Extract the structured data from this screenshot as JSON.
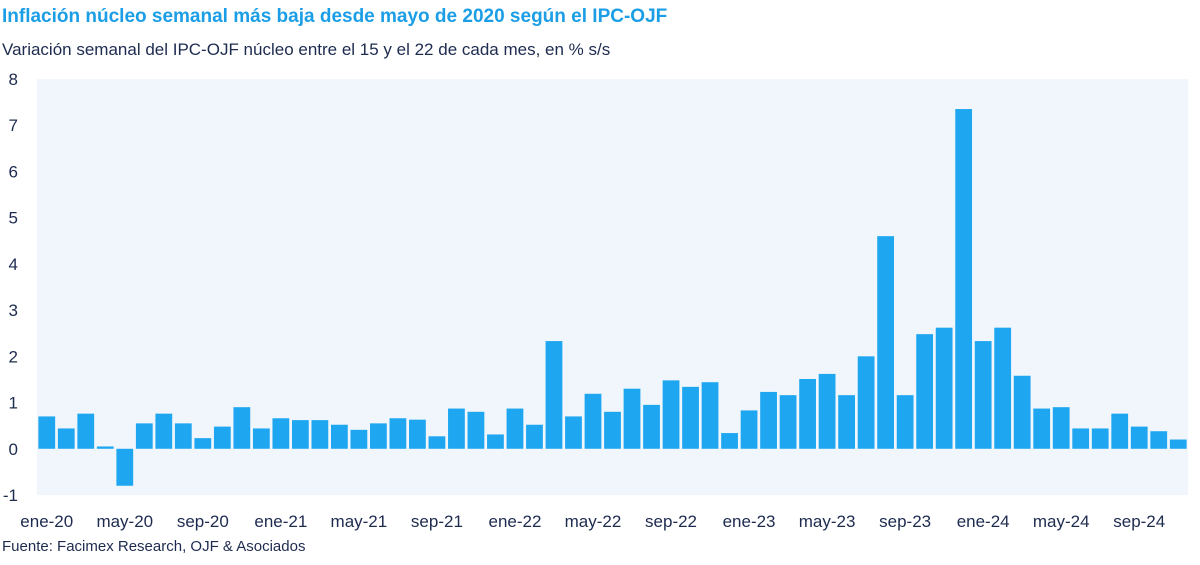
{
  "header": {
    "title": "Inflación núcleo semanal más baja desde mayo de 2020 según el IPC-OJF",
    "subtitle": "Variación semanal del IPC-OJF núcleo entre el 15 y el 22 de cada mes, en % s/s"
  },
  "footer": {
    "source": "Fuente: Facimex Research, OJF & Asociados"
  },
  "colors": {
    "bar": "#1ea7f0",
    "plot_background": "#f1f6fc",
    "title": "#1b9ee6",
    "text": "#1d2b4f"
  },
  "chart_data": {
    "type": "bar",
    "title": "Inflación núcleo semanal más baja desde mayo de 2020 según el IPC-OJF",
    "subtitle": "Variación semanal del IPC-OJF núcleo entre el 15 y el 22 de cada mes, en % s/s",
    "xlabel": "",
    "ylabel": "",
    "ylim": [
      -1,
      8
    ],
    "yticks": [
      -1,
      0,
      1,
      2,
      3,
      4,
      5,
      6,
      7,
      8
    ],
    "categories": [
      "ene-20",
      "feb-20",
      "mar-20",
      "abr-20",
      "may-20",
      "jun-20",
      "jul-20",
      "ago-20",
      "sep-20",
      "oct-20",
      "nov-20",
      "dic-20",
      "ene-21",
      "feb-21",
      "mar-21",
      "abr-21",
      "may-21",
      "jun-21",
      "jul-21",
      "ago-21",
      "sep-21",
      "oct-21",
      "nov-21",
      "dic-21",
      "ene-22",
      "feb-22",
      "mar-22",
      "abr-22",
      "may-22",
      "jun-22",
      "jul-22",
      "ago-22",
      "sep-22",
      "oct-22",
      "nov-22",
      "dic-22",
      "ene-23",
      "feb-23",
      "mar-23",
      "abr-23",
      "may-23",
      "jun-23",
      "jul-23",
      "ago-23",
      "sep-23",
      "oct-23",
      "nov-23",
      "dic-23",
      "ene-24",
      "feb-24",
      "mar-24",
      "abr-24",
      "may-24",
      "jun-24",
      "jul-24",
      "ago-24",
      "sep-24",
      "oct-24",
      "nov-24"
    ],
    "xtick_labels": [
      "ene-20",
      "may-20",
      "sep-20",
      "ene-21",
      "may-21",
      "sep-21",
      "ene-22",
      "may-22",
      "sep-22",
      "ene-23",
      "may-23",
      "sep-23",
      "ene-24",
      "may-24",
      "sep-24"
    ],
    "xtick_every": 4,
    "values": [
      0.7,
      0.44,
      0.76,
      0.05,
      -0.8,
      0.55,
      0.76,
      0.55,
      0.23,
      0.48,
      0.9,
      0.44,
      0.66,
      0.62,
      0.62,
      0.52,
      0.41,
      0.55,
      0.66,
      0.63,
      0.27,
      0.87,
      0.8,
      0.31,
      0.87,
      0.52,
      2.33,
      0.7,
      1.19,
      0.8,
      1.3,
      0.95,
      1.48,
      1.34,
      1.44,
      0.34,
      0.83,
      1.23,
      1.16,
      1.51,
      1.62,
      1.16,
      2.0,
      4.6,
      1.16,
      2.48,
      2.62,
      7.35,
      2.33,
      2.62,
      1.58,
      0.87,
      0.9,
      0.44,
      0.44,
      0.76,
      0.48,
      0.38,
      0.2
    ],
    "grid": false,
    "legend": "none"
  }
}
